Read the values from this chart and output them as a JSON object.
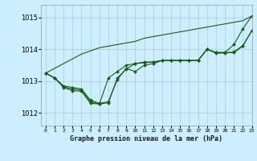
{
  "title": "Graphe pression niveau de la mer (hPa)",
  "background_color": "#cceeff",
  "grid_color": "#aacccc",
  "line_color": "#1a5c1a",
  "xlim": [
    -0.5,
    23
  ],
  "ylim": [
    1011.6,
    1015.4
  ],
  "yticks": [
    1012,
    1013,
    1014,
    1015
  ],
  "xtick_labels": [
    "0",
    "1",
    "2",
    "3",
    "4",
    "5",
    "6",
    "7",
    "8",
    "9",
    "10",
    "11",
    "12",
    "13",
    "14",
    "15",
    "16",
    "17",
    "18",
    "19",
    "20",
    "21",
    "22",
    "23"
  ],
  "series": [
    [
      1013.25,
      1013.1,
      1012.85,
      1012.8,
      1012.75,
      1012.4,
      1012.3,
      1012.35,
      1013.05,
      1013.4,
      1013.3,
      1013.5,
      1013.55,
      1013.65,
      1013.65,
      1013.65,
      1013.65,
      1013.65,
      1014.0,
      1013.9,
      1013.9,
      1014.15,
      1014.65,
      1015.05
    ],
    [
      1013.25,
      1013.1,
      1012.82,
      1012.75,
      1012.72,
      1012.35,
      1012.28,
      1013.1,
      1013.3,
      1013.5,
      1013.55,
      1013.6,
      1013.6,
      1013.65,
      1013.65,
      1013.65,
      1013.65,
      1013.65,
      1014.0,
      1013.9,
      1013.9,
      1013.9,
      1014.1,
      1014.6
    ],
    [
      1013.25,
      1013.1,
      1012.8,
      1012.7,
      1012.68,
      1012.3,
      1012.28,
      1012.32,
      1013.1,
      1013.38,
      1013.55,
      1013.58,
      1013.6,
      1013.65,
      1013.65,
      1013.65,
      1013.65,
      1013.65,
      1014.0,
      1013.88,
      1013.88,
      1013.92,
      1014.12,
      1014.58
    ]
  ],
  "series_straight": [
    1013.25,
    1013.4,
    1013.55,
    1013.7,
    1013.85,
    1013.95,
    1014.05,
    1014.1,
    1014.15,
    1014.2,
    1014.25,
    1014.35,
    1014.4,
    1014.45,
    1014.5,
    1014.55,
    1014.6,
    1014.65,
    1014.7,
    1014.75,
    1014.8,
    1014.85,
    1014.9,
    1015.05
  ]
}
